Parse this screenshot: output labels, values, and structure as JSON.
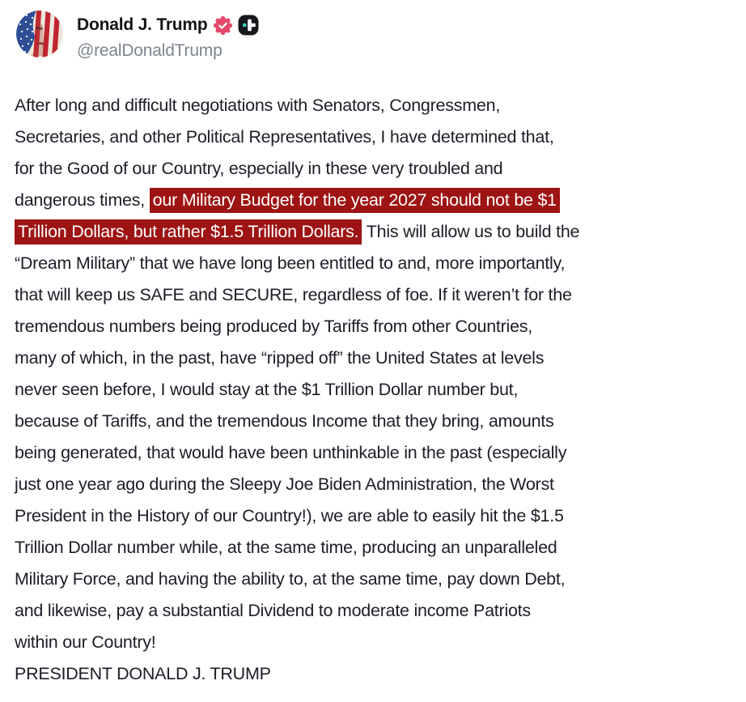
{
  "colors": {
    "page_bg": "#ffffff",
    "text": "#1b1e27",
    "author": "#111318",
    "handle": "#7d8590",
    "highlight_bg": "#9e1313",
    "highlight_text": "#ffffff",
    "verified_badge": "#e4496b",
    "plus_badge_bg": "#17191e",
    "plus_badge_dot": "#45d6c2"
  },
  "header": {
    "author": "Donald J. Trump",
    "handle": "@realDonaldTrump",
    "avatar_alt": "flag-painted-face-avatar",
    "badges": [
      "verified-check",
      "truth-plus"
    ]
  },
  "post": {
    "lines": [
      [
        {
          "t": "After long and difficult negotiations with Senators, Congressmen,",
          "h": false
        }
      ],
      [
        {
          "t": "Secretaries, and other Political Representatives, I have determined that,",
          "h": false
        }
      ],
      [
        {
          "t": "for the Good of our Country, especially in these very troubled and",
          "h": false
        }
      ],
      [
        {
          "t": "dangerous times, ",
          "h": false
        },
        {
          "t": "our Military Budget for the year 2027 should not be $1",
          "h": true
        }
      ],
      [
        {
          "t": "Trillion Dollars, but rather $1.5 Trillion Dollars.",
          "h": true
        },
        {
          "t": " This will allow us to build the",
          "h": false
        }
      ],
      [
        {
          "t": "“Dream Military” that we have long been entitled to and, more importantly,",
          "h": false
        }
      ],
      [
        {
          "t": "that will keep us SAFE and SECURE, regardless of foe. If it weren’t for the",
          "h": false
        }
      ],
      [
        {
          "t": "tremendous numbers being produced by Tariffs from other Countries,",
          "h": false
        }
      ],
      [
        {
          "t": "many of which, in the past, have “ripped off” the United States at levels",
          "h": false
        }
      ],
      [
        {
          "t": "never seen before, I would stay at the $1 Trillion Dollar number but,",
          "h": false
        }
      ],
      [
        {
          "t": "because of Tariffs, and the tremendous Income that they bring, amounts",
          "h": false
        }
      ],
      [
        {
          "t": "being generated, that would have been unthinkable in the past (especially",
          "h": false
        }
      ],
      [
        {
          "t": "just one year ago during the Sleepy Joe Biden Administration, the Worst",
          "h": false
        }
      ],
      [
        {
          "t": "President in the History of our Country!), we are able to easily hit the $1.5",
          "h": false
        }
      ],
      [
        {
          "t": "Trillion Dollar number while, at the same time, producing an unparalleled",
          "h": false
        }
      ],
      [
        {
          "t": "Military Force, and having the ability to, at the same time, pay down Debt,",
          "h": false
        }
      ],
      [
        {
          "t": "and likewise, pay a substantial Dividend to moderate income Patriots",
          "h": false
        }
      ],
      [
        {
          "t": "within our Country!",
          "h": false
        }
      ],
      [
        {
          "t": "PRESIDENT DONALD J. TRUMP",
          "h": false
        }
      ]
    ]
  }
}
